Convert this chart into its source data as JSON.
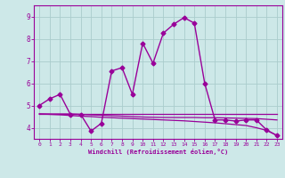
{
  "xlabel": "Windchill (Refroidissement éolien,°C)",
  "xlim": [
    -0.5,
    23.5
  ],
  "ylim": [
    3.5,
    9.5
  ],
  "yticks": [
    4,
    5,
    6,
    7,
    8,
    9
  ],
  "xticks": [
    0,
    1,
    2,
    3,
    4,
    5,
    6,
    7,
    8,
    9,
    10,
    11,
    12,
    13,
    14,
    15,
    16,
    17,
    18,
    19,
    20,
    21,
    22,
    23
  ],
  "bg_color": "#cde8e8",
  "line_color": "#990099",
  "grid_color": "#aacccc",
  "lines": [
    {
      "x": [
        0,
        1,
        2,
        3,
        4,
        5,
        6,
        7,
        8,
        9,
        10,
        11,
        12,
        13,
        14,
        15,
        16,
        17,
        18,
        19,
        20,
        21,
        22,
        23
      ],
      "y": [
        5.0,
        5.3,
        5.5,
        4.6,
        4.6,
        3.85,
        4.2,
        6.55,
        6.7,
        5.5,
        7.8,
        6.9,
        8.25,
        8.65,
        8.95,
        8.7,
        6.0,
        4.35,
        4.35,
        4.3,
        4.35,
        4.35,
        3.9,
        3.65
      ],
      "marker": "D",
      "markersize": 2.5,
      "linewidth": 1.0
    },
    {
      "x": [
        0,
        1,
        2,
        3,
        4,
        5,
        14,
        15,
        16,
        17,
        18,
        19,
        20,
        21,
        22,
        23
      ],
      "y": [
        4.62,
        4.62,
        4.62,
        4.62,
        4.62,
        4.62,
        4.62,
        4.62,
        4.62,
        4.62,
        4.62,
        4.62,
        4.62,
        4.62,
        4.62,
        4.62
      ],
      "marker": null,
      "linewidth": 0.9
    },
    {
      "x": [
        0,
        1,
        2,
        3,
        4,
        5,
        6,
        7,
        8,
        9,
        10,
        11,
        12,
        13,
        14,
        15,
        16,
        17,
        18,
        19,
        20,
        21,
        22,
        23
      ],
      "y": [
        4.62,
        4.62,
        4.62,
        4.62,
        4.6,
        4.58,
        4.56,
        4.54,
        4.52,
        4.5,
        4.48,
        4.47,
        4.46,
        4.46,
        4.46,
        4.46,
        4.45,
        4.45,
        4.44,
        4.43,
        4.42,
        4.41,
        4.38,
        4.35
      ],
      "marker": null,
      "linewidth": 0.9
    },
    {
      "x": [
        0,
        1,
        2,
        3,
        4,
        5,
        6,
        7,
        8,
        9,
        10,
        11,
        12,
        13,
        14,
        15,
        16,
        17,
        18,
        19,
        20,
        21,
        22,
        23
      ],
      "y": [
        4.62,
        4.6,
        4.58,
        4.55,
        4.52,
        4.5,
        4.47,
        4.45,
        4.43,
        4.41,
        4.39,
        4.37,
        4.35,
        4.33,
        4.31,
        4.28,
        4.25,
        4.22,
        4.18,
        4.14,
        4.1,
        4.0,
        3.88,
        3.65
      ],
      "marker": null,
      "linewidth": 0.9
    }
  ]
}
